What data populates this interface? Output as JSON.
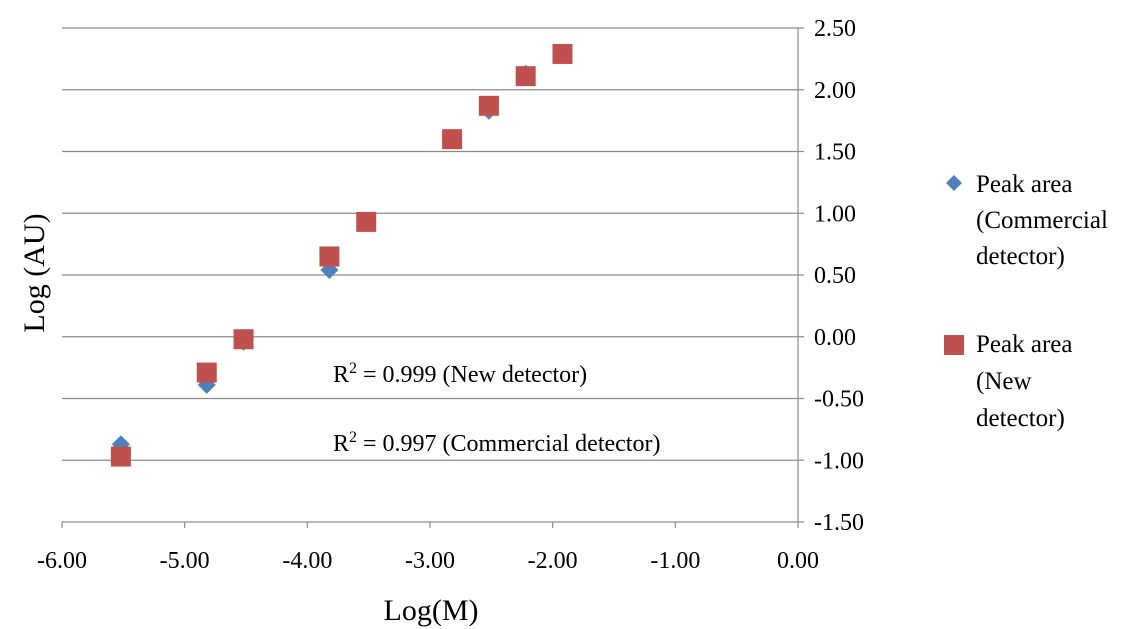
{
  "chart_data": {
    "type": "scatter",
    "title": "",
    "xlabel": "Log(M)",
    "ylabel": "Log (AU)",
    "xlim": [
      -6.0,
      0.0
    ],
    "ylim": [
      -1.5,
      2.5
    ],
    "x_ticks": [
      "-6.00",
      "-5.00",
      "-4.00",
      "-3.00",
      "-2.00",
      "-1.00",
      "0.00"
    ],
    "y_ticks": [
      "2.50",
      "2.00",
      "1.50",
      "1.00",
      "0.50",
      "0.00",
      "-0.50",
      "-1.00",
      "-1.50"
    ],
    "x_tick_values": [
      -6,
      -5,
      -4,
      -3,
      -2,
      -1,
      0
    ],
    "y_tick_values": [
      2.5,
      2.0,
      1.5,
      1.0,
      0.5,
      0.0,
      -0.5,
      -1.0,
      -1.5
    ],
    "y_axis_position": "right",
    "grid": "horizontal",
    "legend_position": "right",
    "series": [
      {
        "name": "Peak area (Commercial detector)",
        "legend_lines": [
          "Peak area",
          "(Commercial",
          "detector)"
        ],
        "marker": "diamond",
        "color": "#4f81bd",
        "points": [
          {
            "x": -5.52,
            "y": -0.87
          },
          {
            "x": -4.82,
            "y": -0.39
          },
          {
            "x": -4.52,
            "y": -0.04
          },
          {
            "x": -3.82,
            "y": 0.54
          },
          {
            "x": -3.52,
            "y": 0.93
          },
          {
            "x": -2.82,
            "y": 1.6
          },
          {
            "x": -2.52,
            "y": 1.83
          },
          {
            "x": -2.22,
            "y": 2.13
          },
          {
            "x": -1.92,
            "y": 2.28
          }
        ]
      },
      {
        "name": "Peak area (New detector)",
        "legend_lines": [
          "Peak area",
          "(New",
          "detector)"
        ],
        "marker": "square",
        "color": "#c0504d",
        "points": [
          {
            "x": -5.52,
            "y": -0.97
          },
          {
            "x": -4.82,
            "y": -0.29
          },
          {
            "x": -4.52,
            "y": -0.02
          },
          {
            "x": -3.82,
            "y": 0.65
          },
          {
            "x": -3.52,
            "y": 0.93
          },
          {
            "x": -2.82,
            "y": 1.6
          },
          {
            "x": -2.52,
            "y": 1.87
          },
          {
            "x": -2.22,
            "y": 2.11
          },
          {
            "x": -1.92,
            "y": 2.29
          }
        ]
      }
    ],
    "annotations": [
      {
        "prefix": "R",
        "sup": "2",
        "text": " = 0.999 (New detector)"
      },
      {
        "prefix": "R",
        "sup": "2",
        "text": " = 0.997 (Commercial detector)"
      }
    ]
  }
}
